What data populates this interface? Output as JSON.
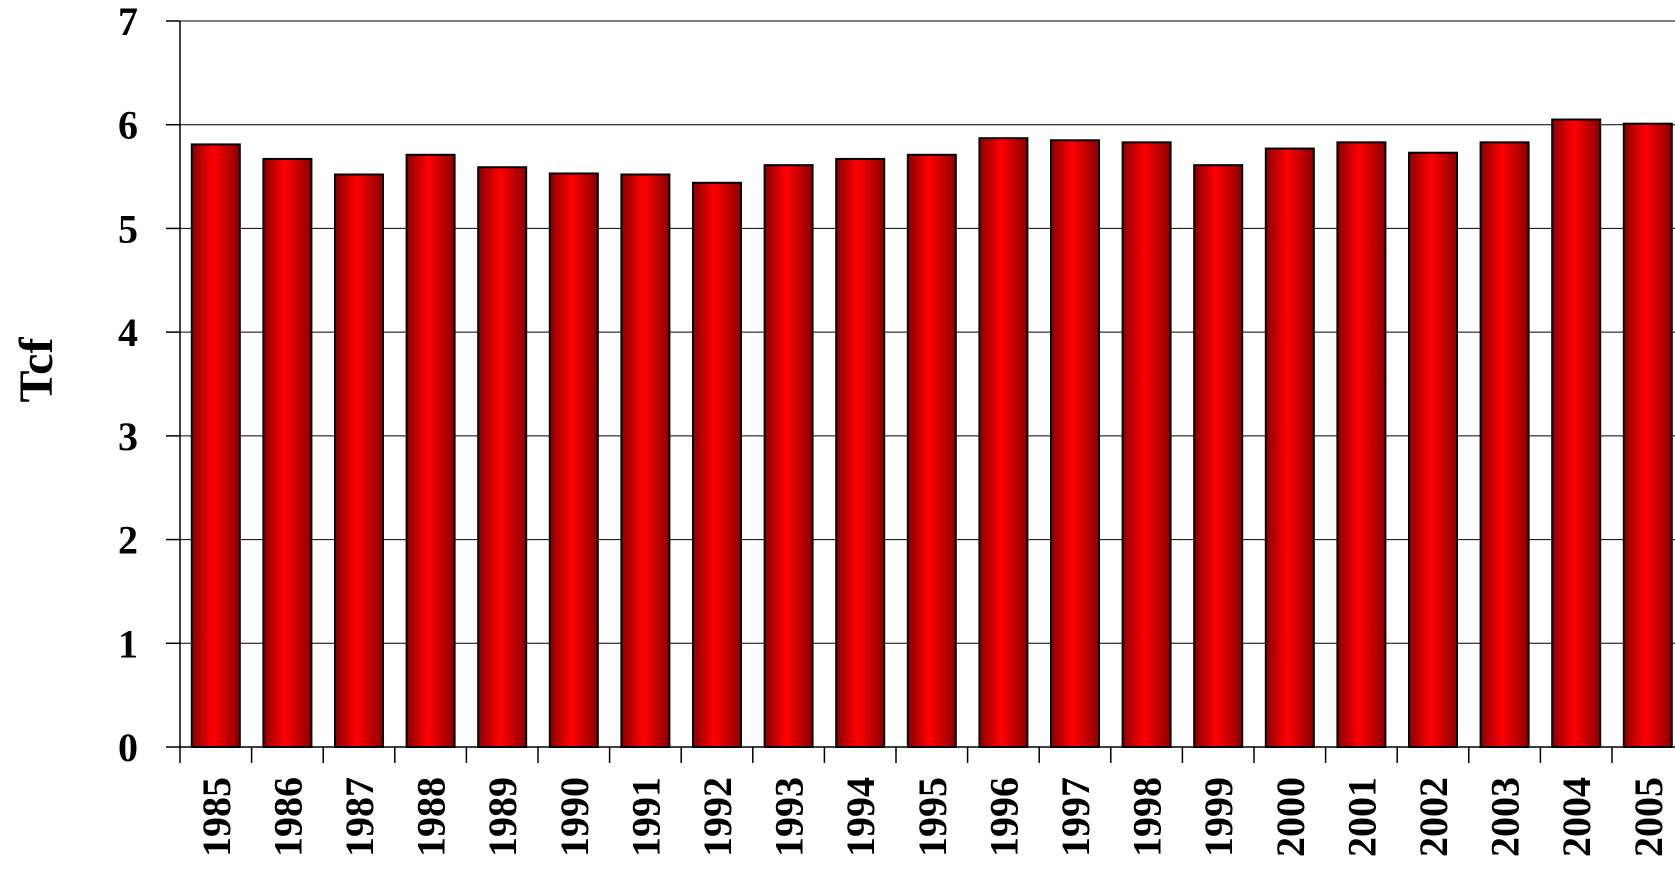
{
  "chart_data": {
    "type": "bar",
    "title": "",
    "xlabel": "",
    "ylabel": "Tcf",
    "ylim": [
      0,
      7
    ],
    "yticks": [
      "0",
      "1",
      "2",
      "3",
      "4",
      "5",
      "6",
      "7"
    ],
    "grid": true,
    "legend": "none",
    "categories": [
      "1985",
      "1986",
      "1987",
      "1988",
      "1989",
      "1990",
      "1991",
      "1992",
      "1993",
      "1994",
      "1995",
      "1996",
      "1997",
      "1998",
      "1999",
      "2000",
      "2001",
      "2002",
      "2003",
      "2004",
      "2005"
    ],
    "series": [
      {
        "values": [
          5.81,
          5.67,
          5.52,
          5.71,
          5.59,
          5.53,
          5.52,
          5.44,
          5.61,
          5.67,
          5.71,
          5.87,
          5.85,
          5.83,
          5.61,
          5.77,
          5.83,
          5.73,
          5.83,
          6.05,
          6.01
        ],
        "color": "#ee0000"
      }
    ]
  }
}
